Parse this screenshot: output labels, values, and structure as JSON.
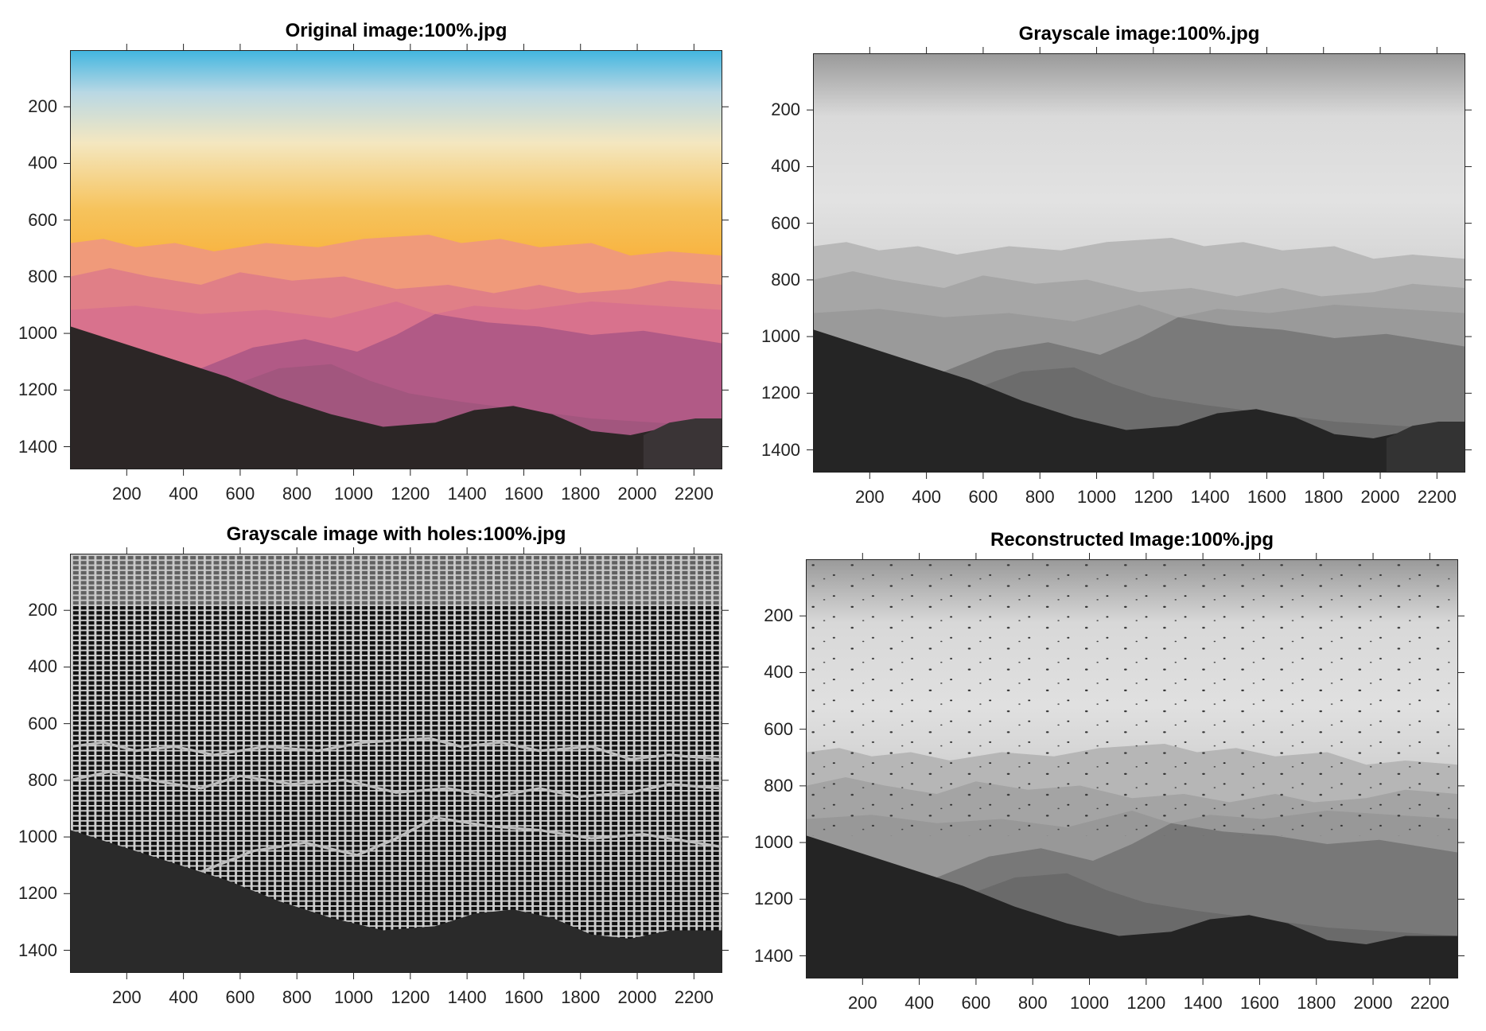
{
  "figure": {
    "axis": {
      "x_ticks": [
        200,
        400,
        600,
        800,
        1000,
        1200,
        1400,
        1600,
        1800,
        2000,
        2200
      ],
      "y_ticks": [
        200,
        400,
        600,
        800,
        1000,
        1200,
        1400
      ],
      "x_max": 2300,
      "y_max": 1480
    },
    "panels": [
      {
        "id": "original",
        "title": "Original image:100%.jpg"
      },
      {
        "id": "grayscale",
        "title": "Grayscale image:100%.jpg"
      },
      {
        "id": "holes",
        "title": "Grayscale image with holes:100%.jpg"
      },
      {
        "id": "reconstructed",
        "title": "Reconstructed Image:100%.jpg"
      }
    ]
  }
}
